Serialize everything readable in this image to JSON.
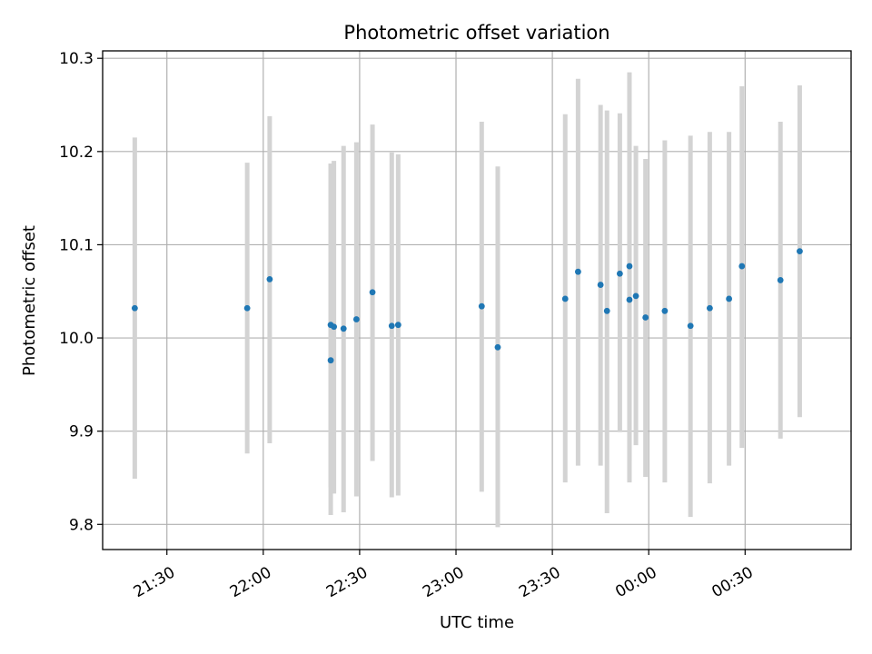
{
  "chart_data": {
    "type": "scatter",
    "title": "Photometric offset variation",
    "xlabel": "UTC time",
    "ylabel": "Photometric offset",
    "grid": true,
    "x_axis": "time",
    "xlim": [
      "21:10",
      "01:03"
    ],
    "ylim": [
      9.773,
      10.308
    ],
    "x_ticks": [
      "21:30",
      "22:00",
      "22:30",
      "23:00",
      "23:30",
      "00:00",
      "00:30"
    ],
    "y_ticks": [
      "9.8",
      "9.9",
      "10.0",
      "10.1",
      "10.2",
      "10.3"
    ],
    "marker_color": "#1f77b4",
    "errorbar_color": "#d3d3d3",
    "points": [
      {
        "x": "21:20",
        "y": 10.032,
        "low": 9.849,
        "high": 10.215
      },
      {
        "x": "21:55",
        "y": 10.032,
        "low": 9.876,
        "high": 10.188
      },
      {
        "x": "22:02",
        "y": 10.063,
        "low": 9.887,
        "high": 10.238
      },
      {
        "x": "22:21",
        "y": 10.014,
        "low": 9.84,
        "high": 10.187
      },
      {
        "x": "22:21",
        "y": 9.976,
        "low": 9.81,
        "high": 10.187
      },
      {
        "x": "22:22",
        "y": 10.012,
        "low": 9.833,
        "high": 10.19
      },
      {
        "x": "22:25",
        "y": 10.01,
        "low": 9.813,
        "high": 10.206
      },
      {
        "x": "22:29",
        "y": 10.02,
        "low": 9.83,
        "high": 10.21
      },
      {
        "x": "22:34",
        "y": 10.049,
        "low": 9.868,
        "high": 10.229
      },
      {
        "x": "22:40",
        "y": 10.013,
        "low": 9.829,
        "high": 10.199
      },
      {
        "x": "22:42",
        "y": 10.014,
        "low": 9.831,
        "high": 10.197
      },
      {
        "x": "23:08",
        "y": 10.034,
        "low": 9.835,
        "high": 10.232
      },
      {
        "x": "23:13",
        "y": 9.99,
        "low": 9.797,
        "high": 10.184
      },
      {
        "x": "23:34",
        "y": 10.042,
        "low": 9.845,
        "high": 10.24
      },
      {
        "x": "23:38",
        "y": 10.071,
        "low": 9.863,
        "high": 10.278
      },
      {
        "x": "23:45",
        "y": 10.057,
        "low": 9.863,
        "high": 10.25
      },
      {
        "x": "23:47",
        "y": 10.029,
        "low": 9.812,
        "high": 10.244
      },
      {
        "x": "23:51",
        "y": 10.069,
        "low": 9.899,
        "high": 10.241
      },
      {
        "x": "23:54",
        "y": 10.041,
        "low": 9.845,
        "high": 10.236
      },
      {
        "x": "23:54",
        "y": 10.077,
        "low": 9.869,
        "high": 10.285
      },
      {
        "x": "23:56",
        "y": 10.045,
        "low": 9.885,
        "high": 10.206
      },
      {
        "x": "23:59",
        "y": 10.022,
        "low": 9.851,
        "high": 10.192
      },
      {
        "x": "00:05",
        "y": 10.029,
        "low": 9.845,
        "high": 10.212
      },
      {
        "x": "00:13",
        "y": 10.013,
        "low": 9.808,
        "high": 10.217
      },
      {
        "x": "00:19",
        "y": 10.032,
        "low": 9.844,
        "high": 10.221
      },
      {
        "x": "00:25",
        "y": 10.042,
        "low": 9.863,
        "high": 10.221
      },
      {
        "x": "00:29",
        "y": 10.077,
        "low": 9.882,
        "high": 10.27
      },
      {
        "x": "00:41",
        "y": 10.062,
        "low": 9.892,
        "high": 10.232
      },
      {
        "x": "00:47",
        "y": 10.093,
        "low": 9.915,
        "high": 10.271
      }
    ]
  }
}
